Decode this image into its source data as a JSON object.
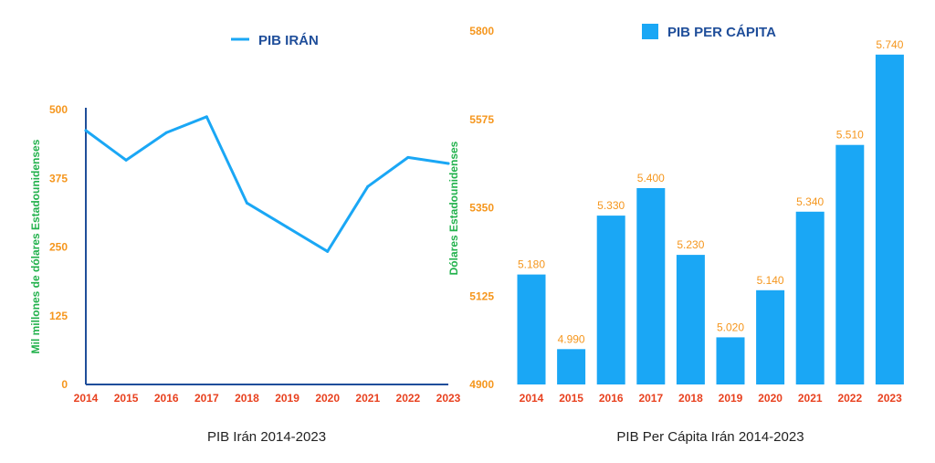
{
  "colors": {
    "series": "#1aa7f5",
    "axis_line": "#1f4e9a",
    "legend_text": "#1f4e9a",
    "y_tick": "#f5961d",
    "x_tick": "#e8411f",
    "y_label": "#22b14c",
    "data_label": "#f5961d",
    "caption": "#222222"
  },
  "chart_data": [
    {
      "type": "line",
      "legend": "PIB IRÁN",
      "caption": "PIB Irán 2014-2023",
      "ylabel": "Mil millones de dólares Estadounidenses",
      "xlabel": "",
      "ylim": [
        0,
        500
      ],
      "yticks": [
        "0",
        "125",
        "250",
        "375",
        "500"
      ],
      "categories": [
        "2014",
        "2015",
        "2016",
        "2017",
        "2018",
        "2019",
        "2020",
        "2021",
        "2022",
        "2023"
      ],
      "series": [
        {
          "name": "PIB IRÁN",
          "values": [
            462,
            408,
            458,
            487,
            330,
            286,
            242,
            360,
            413,
            402
          ]
        }
      ]
    },
    {
      "type": "bar",
      "legend": "PIB PER CÁPITA",
      "caption": "PIB Per Cápita Irán 2014-2023",
      "ylabel": "Dólares Estadounidenses",
      "xlabel": "",
      "ylim": [
        4900,
        5800
      ],
      "yticks": [
        "4900",
        "5125",
        "5350",
        "5575",
        "5800"
      ],
      "categories": [
        "2014",
        "2015",
        "2016",
        "2017",
        "2018",
        "2019",
        "2020",
        "2021",
        "2022",
        "2023"
      ],
      "values": [
        5180,
        4990,
        5330,
        5400,
        5230,
        5020,
        5140,
        5340,
        5510,
        5740
      ],
      "value_labels": [
        "5.180",
        "4.990",
        "5.330",
        "5.400",
        "5.230",
        "5.020",
        "5.140",
        "5.340",
        "5.510",
        "5.740"
      ]
    }
  ]
}
